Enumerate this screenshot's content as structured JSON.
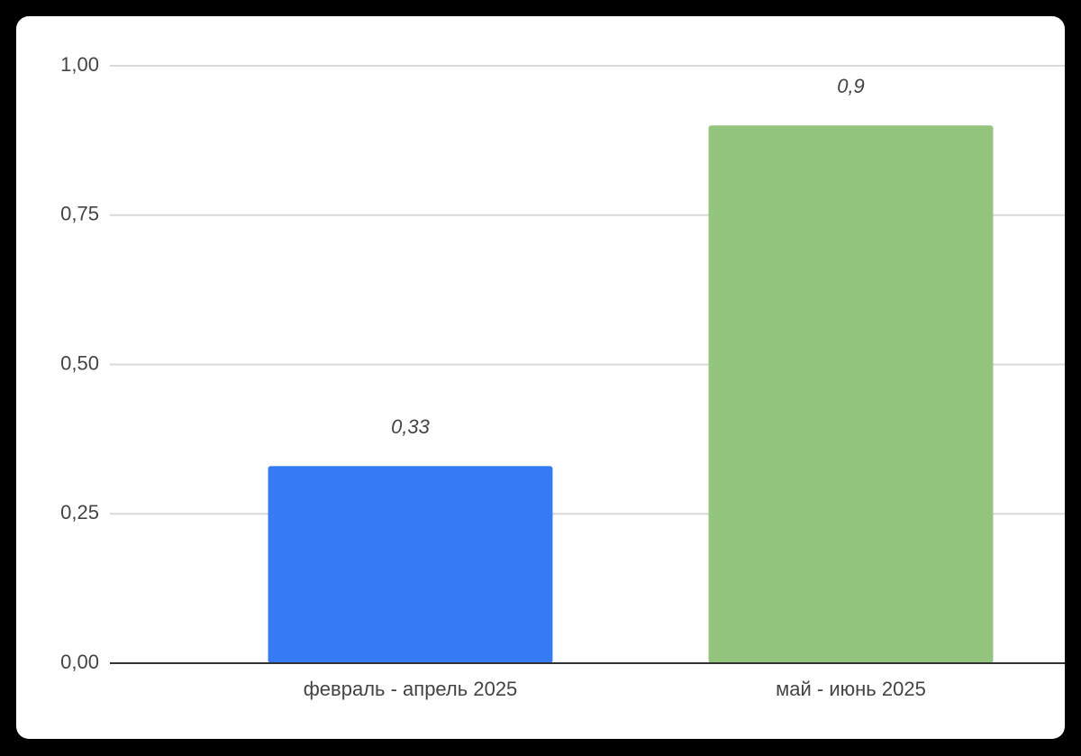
{
  "chart_data": {
    "type": "bar",
    "categories": [
      "февраль - апрель 2025",
      "май - июнь 2025"
    ],
    "values": [
      0.33,
      0.9
    ],
    "value_labels": [
      "0,33",
      "0,9"
    ],
    "colors": [
      "#367bf5",
      "#93c47d"
    ],
    "ylim": [
      0,
      1
    ],
    "yticks": [
      {
        "value": 0,
        "label": "0,00"
      },
      {
        "value": 0.25,
        "label": "0,25"
      },
      {
        "value": 0.5,
        "label": "0,50"
      },
      {
        "value": 0.75,
        "label": "0,75"
      },
      {
        "value": 1,
        "label": "1,00"
      }
    ],
    "grid": true
  }
}
